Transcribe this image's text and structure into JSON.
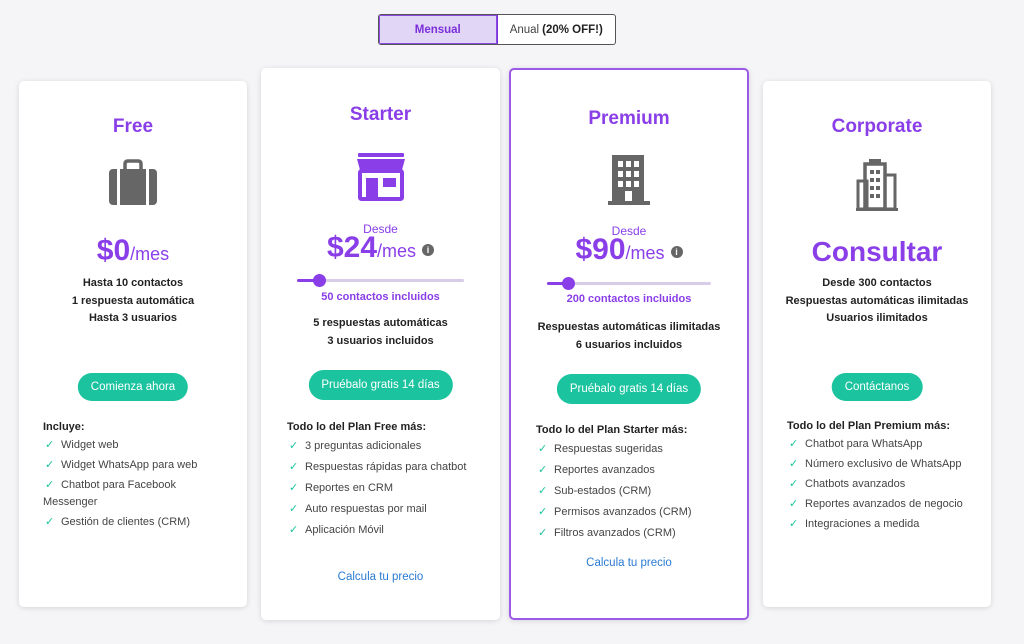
{
  "billing_toggle": {
    "monthly_label": "Mensual",
    "annual_label": "Anual",
    "annual_discount": "(20% OFF!)"
  },
  "plans": [
    {
      "name": "Free",
      "icon": "briefcase-icon",
      "price": "$0",
      "period": "/mes",
      "features": [
        "Hasta 10 contactos",
        "1 respuesta automática",
        "Hasta 3 usuarios"
      ],
      "cta": "Comienza ahora",
      "list_title": "Incluye:",
      "list": [
        "Widget web",
        "Widget WhatsApp para web",
        "Chatbot para Facebook Messenger",
        "Gestión de clientes (CRM)"
      ]
    },
    {
      "name": "Starter",
      "icon": "storefront-icon",
      "desde": "Desde",
      "price": "$24",
      "period": "/mes",
      "info": "i",
      "slider_fraction": 0.13,
      "contacts_included": "50 contactos incluidos",
      "features": [
        "5 respuestas automáticas",
        "3 usuarios incluidos"
      ],
      "cta": "Pruébalo gratis 14 días",
      "list_title": "Todo lo del Plan Free más:",
      "list": [
        "3 preguntas adicionales",
        "Respuestas rápidas para chatbot",
        "Reportes en CRM",
        "Auto respuestas por mail",
        "Aplicación Móvil"
      ],
      "calc_link": "Calcula tu precio"
    },
    {
      "name": "Premium",
      "icon": "building-icon",
      "desde": "Desde",
      "price": "$90",
      "period": "/mes",
      "info": "i",
      "slider_fraction": 0.13,
      "contacts_included": "200 contactos incluidos",
      "features": [
        "Respuestas automáticas ilimitadas",
        "6 usuarios incluidos"
      ],
      "cta": "Pruébalo gratis 14 días",
      "list_title": "Todo lo del Plan Starter más:",
      "list": [
        "Respuestas sugeridas",
        "Reportes avanzados",
        "Sub-estados (CRM)",
        "Permisos avanzados (CRM)",
        "Filtros avanzados (CRM)"
      ],
      "calc_link": "Calcula tu precio"
    },
    {
      "name": "Corporate",
      "icon": "skyscraper-icon",
      "price": "Consultar",
      "features": [
        "Desde 300 contactos",
        "Respuestas automáticas ilimitadas",
        "Usuarios ilimitados"
      ],
      "cta": "Contáctanos",
      "list_title": "Todo lo del Plan Premium más:",
      "list": [
        "Chatbot para WhatsApp",
        "Número exclusivo de WhatsApp",
        "Chatbots avanzados",
        "Reportes avanzados de negocio",
        "Integraciones a medida"
      ]
    }
  ],
  "colors": {
    "accent": "#8a3ee8",
    "cta": "#1bc39e",
    "link": "#2a7bd3",
    "icon": "#666666"
  }
}
